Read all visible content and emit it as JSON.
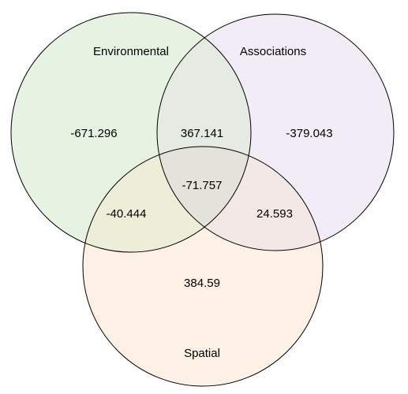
{
  "sets": [
    {
      "id": "environmental",
      "label": "Environmental",
      "color": "#e6f2e2"
    },
    {
      "id": "associations",
      "label": "Associations",
      "color": "#f1ecf6"
    },
    {
      "id": "spatial",
      "label": "Spatial",
      "color": "#fdf1e6"
    }
  ],
  "regions": {
    "environmental_only": "-671.296",
    "associations_only": "-379.043",
    "spatial_only": "384.59",
    "environmental_associations": "367.141",
    "environmental_spatial": "-40.444",
    "associations_spatial": "24.593",
    "all_three": "-71.757"
  },
  "overlap_colors": {
    "environmental_associations": "#e5eae3",
    "environmental_spatial": "#edeed8",
    "associations_spatial": "#f3e8e6",
    "all_three": "#e4e3da"
  },
  "outline_color": "#000000"
}
